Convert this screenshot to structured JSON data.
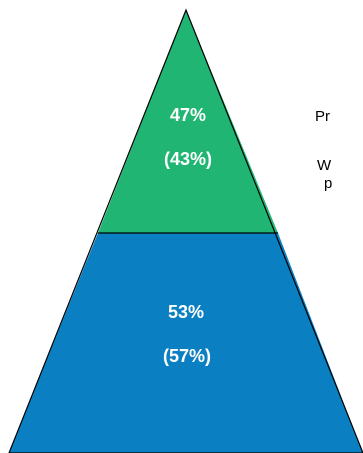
{
  "colors": {
    "top_tier": "#21b573",
    "bottom_tier": "#0a7fc1",
    "outline": "#000000",
    "label_text": "#ffffff"
  },
  "pyramid": {
    "top_tier": {
      "value": "47%",
      "comparison": "(43%)"
    },
    "bottom_tier": {
      "value": "53%",
      "comparison": "(57%)"
    }
  },
  "side_text": {
    "line1": "Pr",
    "line2": "W",
    "line3": "p"
  }
}
